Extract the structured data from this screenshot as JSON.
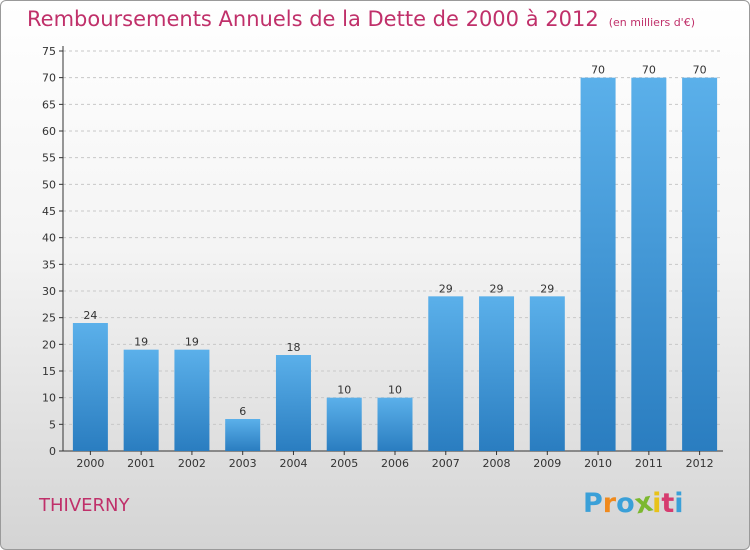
{
  "title": "Remboursements Annuels de la Dette de 2000 à 2012",
  "unit": "(en milliers d'€)",
  "commune": "THIVERNY",
  "logo": {
    "letters": [
      "P",
      "r",
      "o",
      "x",
      "i",
      "t",
      "i"
    ],
    "colors": [
      "#3aa0d8",
      "#f08a1c",
      "#3aa0d8",
      "#7cb82f",
      "#e8c21a",
      "#d63c6f",
      "#3aa0d8"
    ]
  },
  "colors": {
    "bar_top": "#5bb0ea",
    "bar_bottom": "#2a7dc0",
    "title": "#c0306a",
    "grid": "#c8c8c8",
    "axis": "#333333"
  },
  "chart_data": {
    "type": "bar",
    "title": "Remboursements Annuels de la Dette de 2000 à 2012",
    "xlabel": "",
    "ylabel": "",
    "categories": [
      "2000",
      "2001",
      "2002",
      "2003",
      "2004",
      "2005",
      "2006",
      "2007",
      "2008",
      "2009",
      "2010",
      "2011",
      "2012"
    ],
    "values": [
      24,
      19,
      19,
      6,
      18,
      10,
      10,
      29,
      29,
      29,
      70,
      70,
      70
    ],
    "ylim": [
      0,
      75
    ],
    "yticks": [
      0,
      5,
      10,
      15,
      20,
      25,
      30,
      35,
      40,
      45,
      50,
      55,
      60,
      65,
      70,
      75
    ],
    "grid": true,
    "legend": "none"
  }
}
